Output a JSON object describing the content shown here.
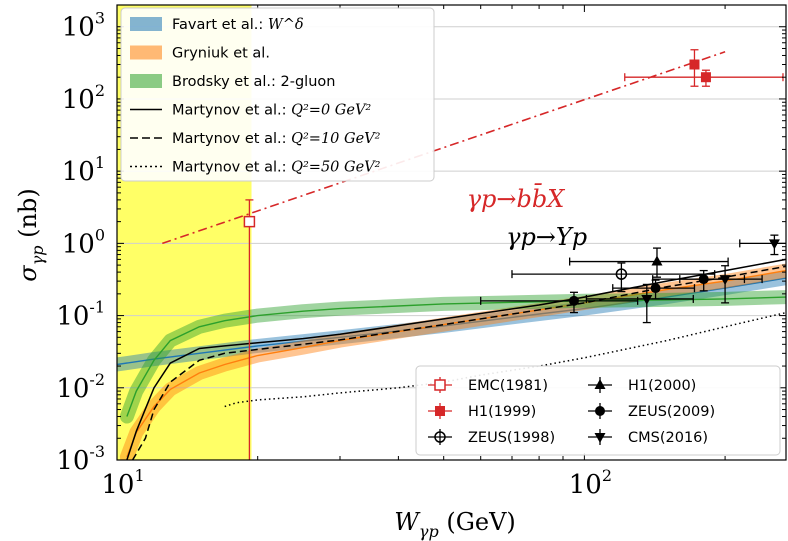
{
  "chart_data": {
    "type": "line",
    "title": "",
    "xlabel": "W_{γp} (GeV)",
    "ylabel": "σ_{γp} (nb)",
    "x_scale": "log",
    "y_scale": "log",
    "xlim": [
      10,
      270
    ],
    "ylim": [
      0.001,
      2000
    ],
    "grid": "horizontal",
    "x_ticks": [
      {
        "value": 10,
        "base": "10",
        "exp": "1"
      },
      {
        "value": 100,
        "base": "10",
        "exp": "2"
      }
    ],
    "y_ticks": [
      {
        "value": 0.001,
        "base": "10",
        "exp": "-3"
      },
      {
        "value": 0.01,
        "base": "10",
        "exp": "-2"
      },
      {
        "value": 0.1,
        "base": "10",
        "exp": "-1"
      },
      {
        "value": 1,
        "base": "10",
        "exp": "0"
      },
      {
        "value": 10,
        "base": "10",
        "exp": "1"
      },
      {
        "value": 100,
        "base": "10",
        "exp": "2"
      },
      {
        "value": 1000,
        "base": "10",
        "exp": "3"
      }
    ],
    "shaded_region": {
      "x": [
        10,
        19.4
      ],
      "color": "#ffff66"
    },
    "annotations": [
      {
        "text": "γp→bb̄X",
        "x": 56,
        "y": 3.2,
        "color": "#d62728"
      },
      {
        "text": "γp→Υp",
        "x": 68,
        "y": 0.95,
        "color": "#000000"
      }
    ],
    "bands": [
      {
        "name": "Favart et al.: W^δ",
        "color": "#1f77b4",
        "x": [
          10,
          12,
          15,
          20,
          30,
          50,
          80,
          100,
          150,
          200,
          270
        ],
        "y": [
          0.021,
          0.025,
          0.03,
          0.038,
          0.05,
          0.072,
          0.105,
          0.125,
          0.18,
          0.24,
          0.33
        ]
      },
      {
        "name": "Gryniuk et al.",
        "color": "#ff7f0e",
        "x": [
          10.5,
          11,
          12,
          13,
          15,
          17,
          20,
          25,
          30,
          50,
          80,
          100,
          150,
          200,
          270
        ],
        "y": [
          0.0011,
          0.0024,
          0.0055,
          0.0095,
          0.016,
          0.021,
          0.028,
          0.036,
          0.045,
          0.075,
          0.12,
          0.15,
          0.23,
          0.3,
          0.42
        ]
      },
      {
        "name": "Brodsky et al.: 2-gluon",
        "color": "#2ca02c",
        "x": [
          10.5,
          11,
          12,
          13,
          15,
          17,
          20,
          25,
          30,
          50,
          80,
          100,
          150,
          200,
          270
        ],
        "y": [
          0.004,
          0.009,
          0.024,
          0.045,
          0.07,
          0.085,
          0.1,
          0.115,
          0.125,
          0.145,
          0.155,
          0.16,
          0.165,
          0.17,
          0.18
        ]
      }
    ],
    "series": [
      {
        "name": "Martynov et al.: Q^2=0 GeV^2",
        "style": "solid",
        "x": [
          10.5,
          11,
          12,
          13,
          15,
          17,
          20,
          25,
          30,
          50,
          80,
          100,
          150,
          200,
          270
        ],
        "y": [
          0.001,
          0.0025,
          0.01,
          0.022,
          0.035,
          0.038,
          0.042,
          0.048,
          0.055,
          0.09,
          0.14,
          0.18,
          0.3,
          0.42,
          0.6
        ]
      },
      {
        "name": "Martynov et al.: Q^2=10 GeV^2",
        "style": "dashed",
        "x": [
          10.8,
          11.5,
          12,
          13,
          15,
          17,
          20,
          25,
          30,
          50,
          80,
          100,
          150,
          200,
          270
        ],
        "y": [
          0.001,
          0.002,
          0.005,
          0.012,
          0.024,
          0.03,
          0.034,
          0.04,
          0.046,
          0.075,
          0.12,
          0.15,
          0.25,
          0.34,
          0.48
        ]
      },
      {
        "name": "Martynov et al.: Q^2=50 GeV^2",
        "style": "dotted",
        "x": [
          17,
          18,
          20,
          25,
          30,
          40,
          50,
          60,
          80,
          100,
          150,
          200,
          270
        ],
        "y": [
          0.0055,
          0.0062,
          0.0068,
          0.0075,
          0.0085,
          0.01,
          0.012,
          0.015,
          0.02,
          0.026,
          0.045,
          0.07,
          0.11
        ]
      },
      {
        "name": "",
        "style": "dashdot",
        "color": "#d62728",
        "x": [
          12.5,
          200
        ],
        "y": [
          1.0,
          450
        ]
      }
    ],
    "data_points": [
      {
        "name": "EMC(1981)",
        "marker": "square-open",
        "color": "#d62728",
        "points": [
          {
            "x": 19.2,
            "y": 2.0,
            "yerr": [
              2.0,
              2.0
            ]
          }
        ]
      },
      {
        "name": "H1(1999)",
        "marker": "square",
        "color": "#d62728",
        "points": [
          {
            "x": 172,
            "y": 300,
            "yerr": [
              150,
              180
            ]
          },
          {
            "x": 182,
            "y": 200,
            "xerr": [
              60,
              84
            ],
            "yerr": [
              50,
              50
            ]
          }
        ]
      },
      {
        "name": "ZEUS(1998)",
        "marker": "circle-open",
        "color": "#000000",
        "points": [
          {
            "x": 120,
            "y": 0.375,
            "xerr": [
              50,
              70
            ],
            "yerr": [
              0.16,
              0.16
            ]
          }
        ]
      },
      {
        "name": "H1(2000)",
        "marker": "triangle-up",
        "color": "#000000",
        "points": [
          {
            "x": 143,
            "y": 0.56,
            "xerr": [
              50,
              60
            ],
            "yerr": [
              0.22,
              0.3
            ]
          }
        ]
      },
      {
        "name": "ZEUS(2009)",
        "marker": "circle",
        "color": "#000000",
        "points": [
          {
            "x": 95,
            "y": 0.16,
            "xerr": [
              35,
              35
            ],
            "yerr": [
              0.05,
              0.05
            ]
          },
          {
            "x": 142,
            "y": 0.24,
            "xerr": [
              27,
              30
            ],
            "yerr": [
              0.07,
              0.07
            ]
          },
          {
            "x": 180,
            "y": 0.32,
            "xerr": [
              40,
              40
            ],
            "yerr": [
              0.1,
              0.1
            ]
          }
        ]
      },
      {
        "name": "CMS(2016)",
        "marker": "triangle-down",
        "color": "#000000",
        "points": [
          {
            "x": 136,
            "y": 0.17,
            "xerr": [
              35,
              35
            ],
            "yerr": [
              0.09,
              0.1
            ]
          },
          {
            "x": 200,
            "y": 0.32,
            "xerr": [
              40,
              40
            ],
            "yerr": [
              0.17,
              0.17
            ]
          },
          {
            "x": 255,
            "y": 1.0,
            "xerr": [
              40,
              40
            ],
            "yerr": [
              0.3,
              0.3
            ]
          }
        ]
      }
    ],
    "legend_top": {
      "placement": "top-left",
      "entries": [
        {
          "text": "Favart et al.: ",
          "math": "W^δ",
          "kind": "band",
          "color": "#1f77b4"
        },
        {
          "text": "Gryniuk et al.",
          "math": "",
          "kind": "band",
          "color": "#ff7f0e"
        },
        {
          "text": "Brodsky et al.: 2-gluon",
          "math": "",
          "kind": "band",
          "color": "#2ca02c"
        },
        {
          "text": "Martynov et al.: ",
          "math": "Q²=0 GeV²",
          "kind": "line",
          "dash": "none"
        },
        {
          "text": "Martynov et al.: ",
          "math": "Q²=10 GeV²",
          "kind": "line",
          "dash": "8 4"
        },
        {
          "text": "Martynov et al.: ",
          "math": "Q²=50 GeV²",
          "kind": "line",
          "dash": "2 3"
        }
      ]
    },
    "legend_bottom": {
      "placement": "lower-right",
      "entries": [
        {
          "text": "EMC(1981)",
          "marker": "square-open",
          "color": "#d62728"
        },
        {
          "text": "H1(2000)",
          "marker": "triangle-up",
          "color": "#000000"
        },
        {
          "text": "H1(1999)",
          "marker": "square",
          "color": "#d62728"
        },
        {
          "text": "ZEUS(2009)",
          "marker": "circle",
          "color": "#000000"
        },
        {
          "text": "ZEUS(1998)",
          "marker": "circle-open",
          "color": "#000000"
        },
        {
          "text": "CMS(2016)",
          "marker": "triangle-down",
          "color": "#000000"
        }
      ]
    }
  }
}
